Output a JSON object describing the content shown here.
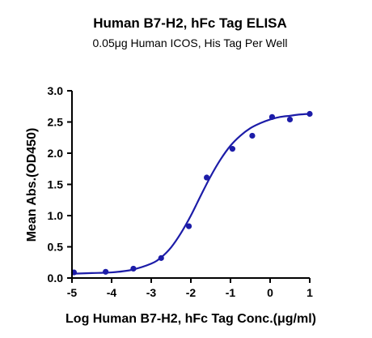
{
  "chart_data": {
    "type": "scatter",
    "title": "Human B7-H2, hFc Tag ELISA",
    "subtitle": "0.05μg Human ICOS, His Tag Per Well",
    "xlabel": "Log Human B7-H2, hFc Tag Conc.(μg/ml)",
    "ylabel": "Mean Abs.(OD450)",
    "xlim": [
      -5,
      1
    ],
    "ylim": [
      0,
      3.0
    ],
    "xticks": [
      "-5",
      "-4",
      "-3",
      "-2",
      "-1",
      "0",
      "1"
    ],
    "yticks": [
      "0.0",
      "0.5",
      "1.0",
      "1.5",
      "2.0",
      "2.5",
      "3.0"
    ],
    "grid": false,
    "legend": "none",
    "series": [
      {
        "points": [
          {
            "x": -4.95,
            "y": 0.09
          },
          {
            "x": -4.15,
            "y": 0.1
          },
          {
            "x": -3.45,
            "y": 0.15
          },
          {
            "x": -2.75,
            "y": 0.32
          },
          {
            "x": -2.05,
            "y": 0.83
          },
          {
            "x": -1.6,
            "y": 1.61
          },
          {
            "x": -0.95,
            "y": 2.07
          },
          {
            "x": -0.45,
            "y": 2.28
          },
          {
            "x": 0.05,
            "y": 2.58
          },
          {
            "x": 0.5,
            "y": 2.54
          },
          {
            "x": 1.0,
            "y": 2.63
          }
        ],
        "fit_curve": [
          {
            "x": -4.95,
            "y": 0.07
          },
          {
            "x": -4.5,
            "y": 0.08
          },
          {
            "x": -4.0,
            "y": 0.09
          },
          {
            "x": -3.5,
            "y": 0.13
          },
          {
            "x": -3.0,
            "y": 0.23
          },
          {
            "x": -2.75,
            "y": 0.33
          },
          {
            "x": -2.5,
            "y": 0.49
          },
          {
            "x": -2.25,
            "y": 0.72
          },
          {
            "x": -2.0,
            "y": 1.0
          },
          {
            "x": -1.75,
            "y": 1.32
          },
          {
            "x": -1.5,
            "y": 1.63
          },
          {
            "x": -1.25,
            "y": 1.9
          },
          {
            "x": -1.0,
            "y": 2.12
          },
          {
            "x": -0.75,
            "y": 2.28
          },
          {
            "x": -0.5,
            "y": 2.4
          },
          {
            "x": -0.25,
            "y": 2.48
          },
          {
            "x": 0.0,
            "y": 2.54
          },
          {
            "x": 0.25,
            "y": 2.58
          },
          {
            "x": 0.5,
            "y": 2.6
          },
          {
            "x": 0.75,
            "y": 2.62
          },
          {
            "x": 1.0,
            "y": 2.63
          }
        ],
        "color": "#1c1ca8"
      }
    ]
  }
}
